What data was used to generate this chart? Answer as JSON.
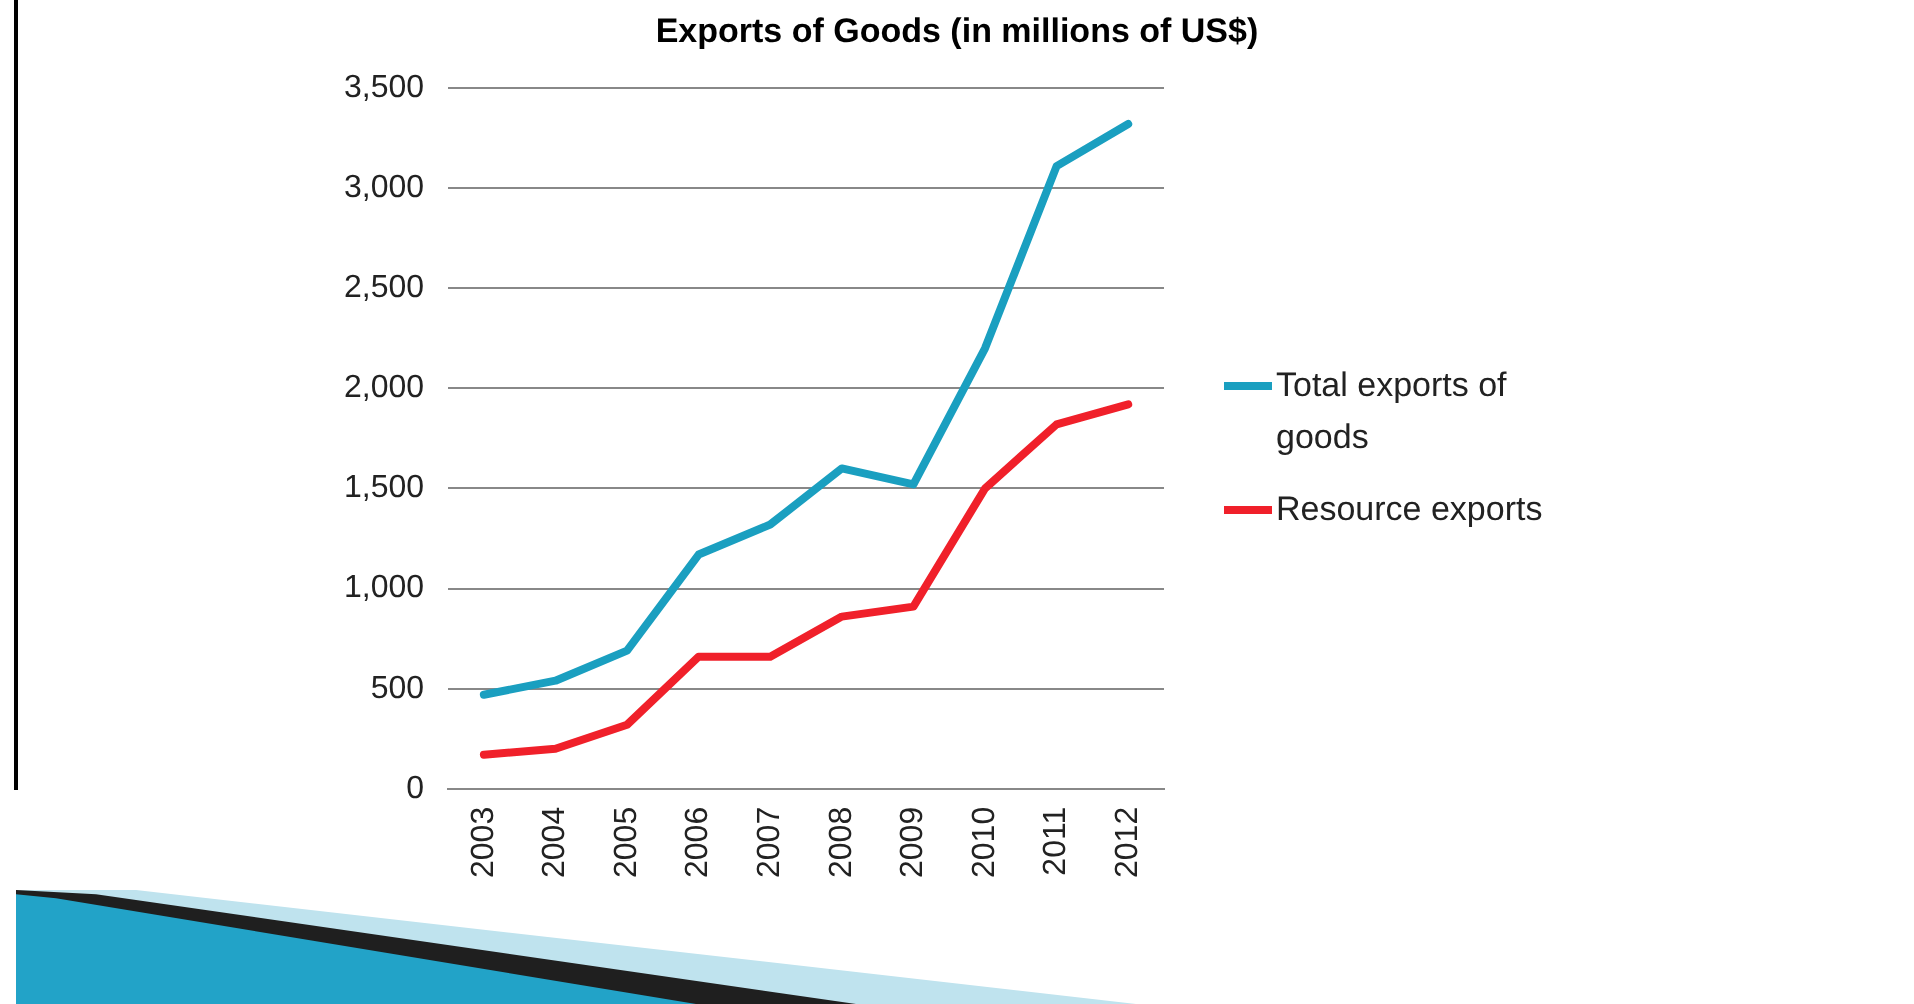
{
  "chart_data": {
    "type": "line",
    "title": "Exports of Goods (in millions of US$)",
    "categories": [
      "2003",
      "2004",
      "2005",
      "2006",
      "2007",
      "2008",
      "2009",
      "2010",
      "2011",
      "2012"
    ],
    "series": [
      {
        "name": "Total exports of goods",
        "color": "#1a9fc0",
        "values": [
          470,
          540,
          690,
          1170,
          1320,
          1600,
          1520,
          2200,
          3110,
          3320
        ]
      },
      {
        "name": "Resource exports",
        "color": "#f0202a",
        "values": [
          170,
          200,
          320,
          660,
          660,
          860,
          910,
          1500,
          1820,
          1920
        ]
      }
    ],
    "ylim": [
      0,
      3500
    ],
    "yticks": [
      {
        "value": 0,
        "label": "0"
      },
      {
        "value": 500,
        "label": "500"
      },
      {
        "value": 1000,
        "label": "1,000"
      },
      {
        "value": 1500,
        "label": "1,500"
      },
      {
        "value": 2000,
        "label": "2,000"
      },
      {
        "value": 2500,
        "label": "2,500"
      },
      {
        "value": 3000,
        "label": "3,000"
      },
      {
        "value": 3500,
        "label": "3,500"
      }
    ],
    "grid": "y",
    "legend": "right",
    "marker": "none",
    "line_style": "solid"
  }
}
